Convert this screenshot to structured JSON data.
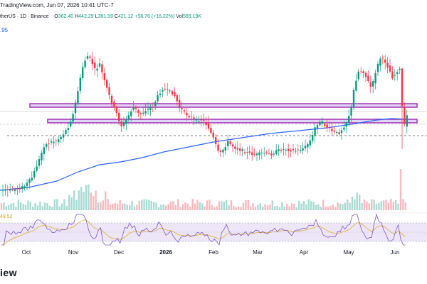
{
  "header": {
    "source_text": "TradingView.com, Jun 07, 2026 10:41 UTC-7",
    "symbol_label": "therUS · 1D · Binance",
    "open_label": "O",
    "open": "362.40",
    "high_label": "H",
    "high": "442.29",
    "low_label": "L",
    "low": "361.59",
    "close_label": "C",
    "close": "421.12",
    "change": "+58.76 (+16.22%)",
    "vol_label": "Vol",
    "vol": "565.19K"
  },
  "ma_readout": ".95",
  "rsi_readout": "49.52",
  "x_axis": {
    "labels": [
      "Oct",
      "Nov",
      "Dec",
      "2026",
      "Feb",
      "Mar",
      "Apr",
      "May",
      "Jun"
    ]
  },
  "brand": "iew",
  "colors": {
    "up": "#089981",
    "down": "#f23645",
    "ma": "#2962ff",
    "zone": "#9c27b0",
    "rsi_line": "#7e57c2",
    "rsi_ma": "#e0b440",
    "rsi_band": "#e1d5f5"
  },
  "chart_data": {
    "type": "candlestick",
    "period": "1D",
    "exchange": "Binance",
    "indicators": [
      "moving average",
      "volume",
      "RSI"
    ],
    "horizontal_zones": 2,
    "dashed_levels": 1,
    "last_candle": {
      "open": 362.4,
      "high": 442.29,
      "low": 361.59,
      "close": 421.12,
      "volume": "565.19K"
    }
  }
}
